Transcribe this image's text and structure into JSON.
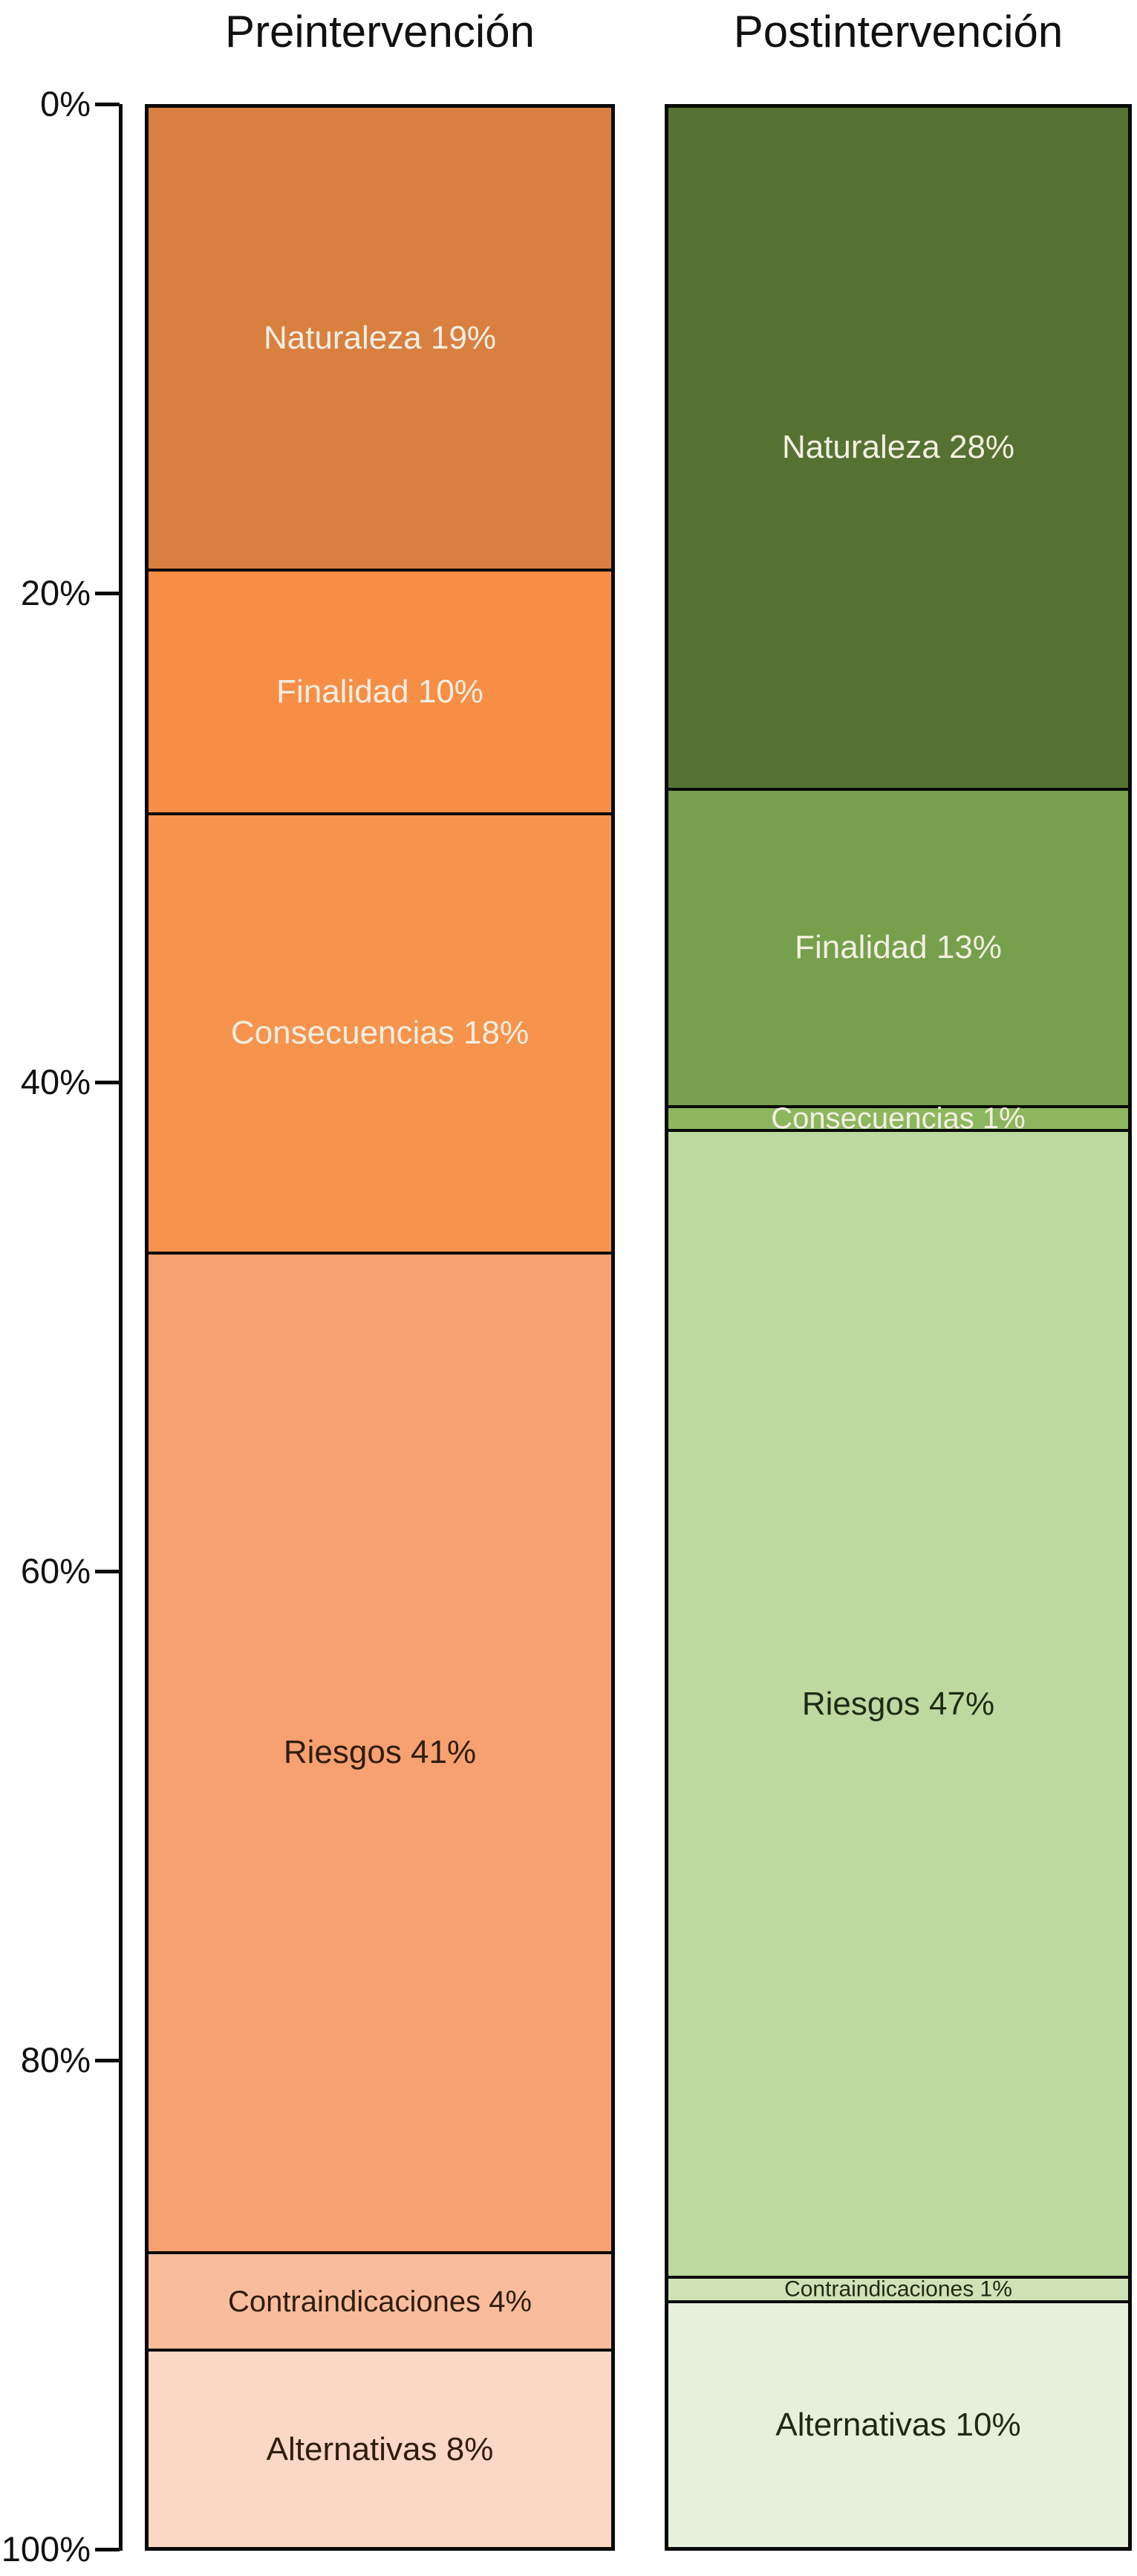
{
  "chart_data": {
    "type": "bar",
    "stacked": true,
    "orientation": "vertical",
    "units": "percent",
    "grid": false,
    "legend": false,
    "ylim": [
      0,
      100
    ],
    "y_ticks": [
      "0%",
      "20%",
      "40%",
      "60%",
      "80%",
      "100%"
    ],
    "categories": [
      "Naturaleza",
      "Finalidad",
      "Consecuencias",
      "Riesgos",
      "Contraindicaciones",
      "Alternativas"
    ],
    "series": [
      {
        "name": "Preintervención",
        "values": [
          19,
          10,
          18,
          41,
          4,
          8
        ]
      },
      {
        "name": "Postintervención",
        "values": [
          28,
          13,
          1,
          47,
          1,
          10
        ]
      }
    ],
    "columns": [
      {
        "title": "Preintervención",
        "segments": [
          {
            "label": "Naturaleza 19%",
            "value": 19,
            "color": "#D97F40",
            "text_color": "#F3EFE2",
            "font_px": 44
          },
          {
            "label": "Finalidad 10%",
            "value": 10,
            "color": "#F68E46",
            "text_color": "#F3EFE2",
            "font_px": 44
          },
          {
            "label": "Consecuencias 18%",
            "value": 18,
            "color": "#F6934C",
            "text_color": "#F3EFE2",
            "font_px": 44
          },
          {
            "label": "Riesgos 41%",
            "value": 41,
            "color": "#F8A170",
            "text_color": "#2F1D0E",
            "font_px": 44
          },
          {
            "label": "Contraindicaciones 4%",
            "value": 4,
            "color": "#FABD9B",
            "text_color": "#2F1D0E",
            "font_px": 40
          },
          {
            "label": "Alternativas 8%",
            "value": 8,
            "color": "#FBD7C5",
            "text_color": "#2F1D0E",
            "font_px": 44
          }
        ]
      },
      {
        "title": "Postintervención",
        "segments": [
          {
            "label": "Naturaleza 28%",
            "value": 28,
            "color": "#567232",
            "text_color": "#F3EFE2",
            "font_px": 44
          },
          {
            "label": "Finalidad 13%",
            "value": 13,
            "color": "#76A04C",
            "text_color": "#F3EFE2",
            "font_px": 44
          },
          {
            "label": "Consecuencias 1%",
            "value": 1,
            "color": "#8CB75F",
            "text_color": "#F3EFE2",
            "font_px": 40
          },
          {
            "label": "Riesgos 47%",
            "value": 47,
            "color": "#BDD9A0",
            "text_color": "#1F2A13",
            "font_px": 44
          },
          {
            "label": "Contraindicaciones 1%",
            "value": 1,
            "color": "#CFE2B6",
            "text_color": "#1F2A13",
            "font_px": 30
          },
          {
            "label": "Alternativas 10%",
            "value": 10,
            "color": "#E6F0DA",
            "text_color": "#1F2A13",
            "font_px": 44
          }
        ]
      }
    ],
    "colors": {
      "axis": "#0a0a0a",
      "title_text": "#111111",
      "tick_text": "#111111"
    }
  }
}
